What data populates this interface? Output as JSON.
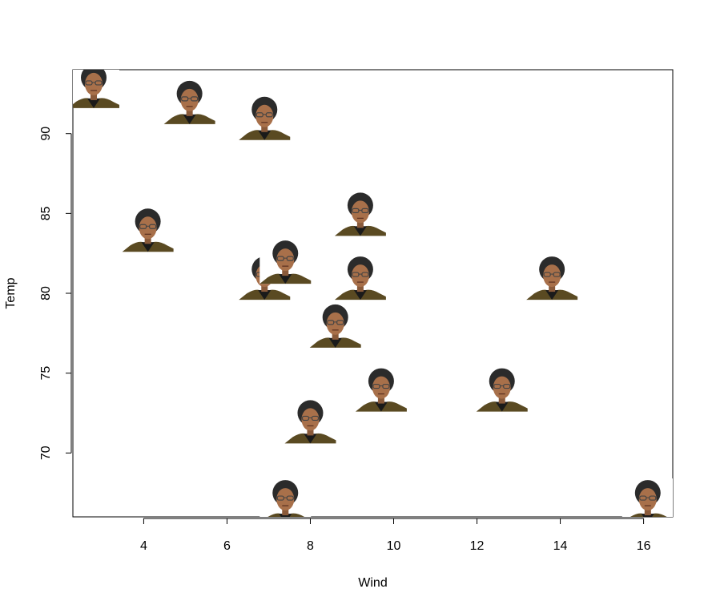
{
  "chart_data": {
    "type": "scatter",
    "xlabel": "Wind",
    "ylabel": "Temp",
    "xlim": [
      2.3,
      16.7
    ],
    "ylim": [
      66,
      94
    ],
    "x_ticks": [
      "4",
      "6",
      "8",
      "10",
      "12",
      "14",
      "16"
    ],
    "y_ticks": [
      "70",
      "75",
      "80",
      "85",
      "90"
    ],
    "marker": "portrait-photo",
    "points": [
      {
        "x": 2.8,
        "y": 93
      },
      {
        "x": 5.1,
        "y": 92
      },
      {
        "x": 6.9,
        "y": 91
      },
      {
        "x": 4.1,
        "y": 84
      },
      {
        "x": 9.2,
        "y": 85
      },
      {
        "x": 6.9,
        "y": 81
      },
      {
        "x": 7.4,
        "y": 82
      },
      {
        "x": 9.2,
        "y": 81
      },
      {
        "x": 13.8,
        "y": 81
      },
      {
        "x": 8.6,
        "y": 78
      },
      {
        "x": 9.7,
        "y": 74
      },
      {
        "x": 12.6,
        "y": 74
      },
      {
        "x": 8.0,
        "y": 72
      },
      {
        "x": 7.4,
        "y": 67
      },
      {
        "x": 16.1,
        "y": 67
      }
    ]
  }
}
